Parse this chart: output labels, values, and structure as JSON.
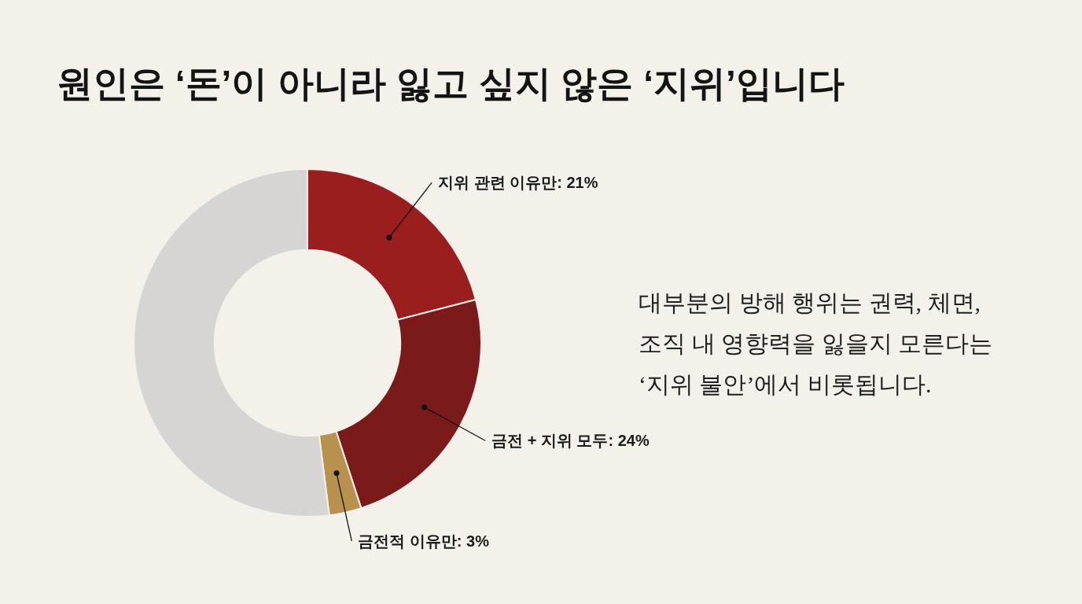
{
  "chart_data": {
    "type": "donut",
    "title": "원인은 ‘돈’이 아니라 잃고 싶지 않은 ‘지위’입니다",
    "categories": [
      "지위 관련 이유만: 21%",
      "금전 + 지위 모두: 24%",
      "금전적 이유만: 3%",
      null
    ],
    "values": [
      21,
      24,
      3,
      52
    ],
    "colors": [
      "#9b1e1e",
      "#7b1a1a",
      "#b8914c",
      "#d6d5d3"
    ],
    "annotations": [
      "대부분의 방해 행위는 권력, 체면,\n조직 내 영향력을 잃을지 모른다는\n‘지위 불안’에서 비롯됩니다."
    ],
    "legend": false
  }
}
